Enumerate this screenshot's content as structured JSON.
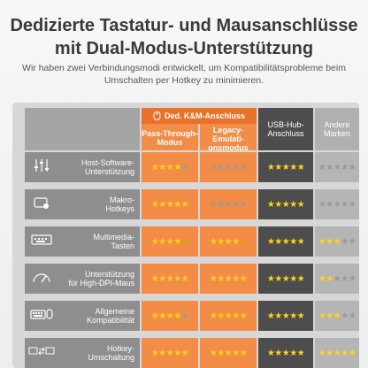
{
  "header": {
    "title_line1": "Dedizierte Tastatur- und Mausanschlüsse",
    "title_line2": "mit Dual-Modus-Unterstützung",
    "subtitle_line1": "Wir haben zwei Verbindungsmodi entwickelt, um Kompatibilitätsprobleme beim",
    "subtitle_line2": "Umschalten per Hotkey zu minimieren."
  },
  "table": {
    "group_label": "Ded. K&M-Anschluss",
    "columns": [
      {
        "line1": "Pass-Through-",
        "line2": "Modus",
        "line3": ""
      },
      {
        "line1": "Legacy-",
        "line2": "Emulati-",
        "line3": "onsmodus"
      },
      {
        "line1": "USB-Hub-",
        "line2": "Anschluss",
        "line3": ""
      },
      {
        "line1": "Andere",
        "line2": "Marken",
        "line3": ""
      }
    ],
    "rows": [
      {
        "label1": "Host-Software-",
        "label2": "Unterstützung",
        "icon": "sliders-icon",
        "ratings": [
          4,
          0,
          5,
          0
        ]
      },
      {
        "label1": "Makro-",
        "label2": "Hotkeys",
        "icon": "macro-icon",
        "ratings": [
          5,
          0,
          5,
          0
        ]
      },
      {
        "label1": "Multimedia-",
        "label2": "Tasten",
        "icon": "media-keys-icon",
        "ratings": [
          4.5,
          4.5,
          5,
          3
        ]
      },
      {
        "label1": "Unterstützung",
        "label2": "für High-DPI-Maus",
        "icon": "dpi-gauge-icon",
        "ratings": [
          5,
          5,
          5,
          2
        ]
      },
      {
        "label1": "Allgemeine",
        "label2": "Kompatibilität",
        "icon": "keyboard-mouse-icon",
        "ratings": [
          4,
          5,
          5,
          3
        ]
      },
      {
        "label1": "Hotkey-",
        "label2": "Umschaltung",
        "icon": "pc-switch-icon",
        "ratings": [
          5,
          5,
          5,
          5
        ]
      }
    ]
  },
  "colors": {
    "orange": "#f28c47",
    "dark": "#4d4d4d",
    "gray": "#8e8e8e",
    "star": "#ffd21a"
  }
}
